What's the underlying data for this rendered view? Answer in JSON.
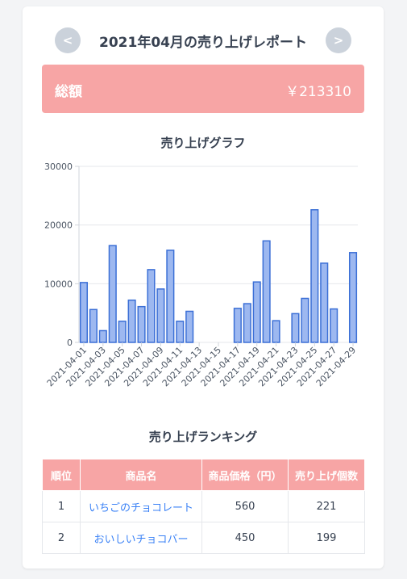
{
  "header": {
    "title": "2021年04月の売り上げレポート",
    "prev_label": "<",
    "next_label": ">"
  },
  "summary": {
    "label": "総額",
    "value": "￥213310"
  },
  "sales_chart": {
    "title": "売り上げグラフ"
  },
  "chart_data": {
    "type": "bar",
    "title": "売り上げグラフ",
    "xlabel": "",
    "ylabel": "",
    "categories": [
      "2021-04-01",
      "2021-04-02",
      "2021-04-03",
      "2021-04-04",
      "2021-04-05",
      "2021-04-06",
      "2021-04-07",
      "2021-04-08",
      "2021-04-09",
      "2021-04-10",
      "2021-04-11",
      "2021-04-12",
      "2021-04-13",
      "2021-04-14",
      "2021-04-15",
      "2021-04-16",
      "2021-04-17",
      "2021-04-18",
      "2021-04-19",
      "2021-04-20",
      "2021-04-21",
      "2021-04-22",
      "2021-04-23",
      "2021-04-24",
      "2021-04-25",
      "2021-04-26",
      "2021-04-27",
      "2021-04-28",
      "2021-04-29"
    ],
    "tick_labels": [
      "2021-04-01",
      "2021-04-03",
      "2021-04-05",
      "2021-04-07",
      "2021-04-09",
      "2021-04-11",
      "2021-04-13",
      "2021-04-15",
      "2021-04-17",
      "2021-04-19",
      "2021-04-21",
      "2021-04-23",
      "2021-04-25",
      "2021-04-27",
      "2021-04-29"
    ],
    "values": [
      10200,
      5600,
      2000,
      16500,
      3600,
      7200,
      6100,
      12400,
      9100,
      15700,
      3600,
      5300,
      0,
      0,
      0,
      0,
      5800,
      6600,
      10300,
      17300,
      3700,
      0,
      4900,
      7500,
      22600,
      13500,
      5700,
      0,
      15300
    ],
    "ylim": [
      0,
      30000
    ],
    "yticks": [
      0,
      10000,
      20000,
      30000
    ],
    "grid": true,
    "bar_fill": "#9db8f0",
    "bar_stroke": "#3b6fd6"
  },
  "ranking": {
    "title": "売り上げランキング",
    "headers": [
      "順位",
      "商品名",
      "商品価格（円）",
      "売り上げ個数"
    ],
    "rows": [
      {
        "rank": "1",
        "name": "いちごのチョコレート",
        "price": "560",
        "qty": "221"
      },
      {
        "rank": "2",
        "name": "おいしいチョコバー",
        "price": "450",
        "qty": "199"
      }
    ]
  }
}
